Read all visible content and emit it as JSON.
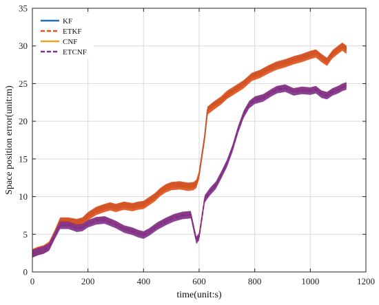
{
  "chart_data": {
    "type": "line",
    "xlabel": "time(unit:s)",
    "ylabel": "Space position error(unit:m)",
    "xlim": [
      0,
      1200
    ],
    "ylim": [
      0,
      35
    ],
    "xticks": [
      0,
      200,
      400,
      600,
      800,
      1000,
      1200
    ],
    "yticks": [
      0,
      5,
      10,
      15,
      20,
      25,
      30,
      35
    ],
    "grid": true,
    "legend_position": "top-left",
    "series": [
      {
        "name": "KF",
        "color": "#1f6fb5",
        "dash": "solid",
        "band": 0.35,
        "x": [
          0,
          20,
          40,
          60,
          80,
          100,
          130,
          160,
          180,
          200,
          230,
          260,
          280,
          300,
          330,
          360,
          380,
          400,
          420,
          440,
          460,
          480,
          500,
          530,
          560,
          580,
          590,
          600,
          620,
          630,
          650,
          680,
          700,
          730,
          760,
          790,
          820,
          850,
          880,
          910,
          940,
          970,
          1000,
          1020,
          1040,
          1060,
          1080,
          1100,
          1115,
          1130
        ],
        "y": [
          2.5,
          2.8,
          3.0,
          3.5,
          5.0,
          6.8,
          6.8,
          6.6,
          6.8,
          7.5,
          8.2,
          8.6,
          8.8,
          8.6,
          8.9,
          8.7,
          8.9,
          9.0,
          9.5,
          10.0,
          10.7,
          11.2,
          11.5,
          11.6,
          11.4,
          11.5,
          11.8,
          13.0,
          18.0,
          21.5,
          22.2,
          22.8,
          23.5,
          24.3,
          25.0,
          26.0,
          26.4,
          27.0,
          27.5,
          27.8,
          28.2,
          28.5,
          28.9,
          29.1,
          28.5,
          28.0,
          29.0,
          29.6,
          30.0,
          29.6
        ]
      },
      {
        "name": "ETKF",
        "color": "#e0521a",
        "dash": "dashed",
        "band": 0.55,
        "x": [
          0,
          20,
          40,
          60,
          80,
          100,
          130,
          160,
          180,
          200,
          230,
          260,
          280,
          300,
          330,
          360,
          380,
          400,
          420,
          440,
          460,
          480,
          500,
          530,
          560,
          580,
          590,
          600,
          620,
          630,
          650,
          680,
          700,
          730,
          760,
          790,
          820,
          850,
          880,
          910,
          940,
          970,
          1000,
          1020,
          1040,
          1060,
          1080,
          1100,
          1115,
          1130
        ],
        "y": [
          2.5,
          2.8,
          3.0,
          3.5,
          5.0,
          6.7,
          6.7,
          6.5,
          6.7,
          7.4,
          8.1,
          8.5,
          8.7,
          8.5,
          8.8,
          8.6,
          8.8,
          8.9,
          9.4,
          9.9,
          10.6,
          11.1,
          11.4,
          11.5,
          11.3,
          11.4,
          11.7,
          12.9,
          17.9,
          21.4,
          22.0,
          22.8,
          23.5,
          24.2,
          24.9,
          25.9,
          26.3,
          26.9,
          27.4,
          27.7,
          28.1,
          28.4,
          28.8,
          29.0,
          28.4,
          27.9,
          28.9,
          29.5,
          29.9,
          29.5
        ]
      },
      {
        "name": "CNF",
        "color": "#f0a21e",
        "dash": "solid",
        "band": 0.3,
        "x": [
          0,
          20,
          40,
          60,
          80,
          100,
          130,
          160,
          180,
          200,
          230,
          260,
          280,
          300,
          330,
          360,
          380,
          400,
          420,
          450,
          480,
          510,
          540,
          570,
          580,
          590,
          600,
          620,
          640,
          660,
          680,
          700,
          720,
          740,
          760,
          780,
          800,
          830,
          860,
          880,
          910,
          940,
          970,
          1000,
          1020,
          1040,
          1060,
          1080,
          1100,
          1115,
          1130
        ],
        "y": [
          2.4,
          2.7,
          2.9,
          3.3,
          4.8,
          6.3,
          6.3,
          5.9,
          6.0,
          6.5,
          6.9,
          7.0,
          6.7,
          6.4,
          5.8,
          5.5,
          5.2,
          5.0,
          5.4,
          6.2,
          6.8,
          7.3,
          7.6,
          7.7,
          6.0,
          4.3,
          4.8,
          9.8,
          10.8,
          11.6,
          13.0,
          14.5,
          16.5,
          19.0,
          21.0,
          22.3,
          22.9,
          23.2,
          23.9,
          24.3,
          24.5,
          24.0,
          24.2,
          24.1,
          24.3,
          23.7,
          23.5,
          24.0,
          24.3,
          24.6,
          24.8
        ]
      },
      {
        "name": "ETCNF",
        "color": "#7e2d8c",
        "dash": "dashed",
        "band": 0.5,
        "x": [
          0,
          20,
          40,
          60,
          80,
          100,
          130,
          160,
          180,
          200,
          230,
          260,
          280,
          300,
          330,
          360,
          380,
          400,
          420,
          450,
          480,
          510,
          540,
          570,
          580,
          590,
          600,
          620,
          640,
          660,
          680,
          700,
          720,
          740,
          760,
          780,
          800,
          830,
          860,
          880,
          910,
          940,
          970,
          1000,
          1020,
          1040,
          1060,
          1080,
          1100,
          1115,
          1130
        ],
        "y": [
          2.4,
          2.7,
          2.9,
          3.3,
          4.8,
          6.2,
          6.2,
          5.8,
          5.9,
          6.4,
          6.8,
          6.9,
          6.6,
          6.3,
          5.7,
          5.4,
          5.1,
          4.9,
          5.3,
          6.1,
          6.7,
          7.2,
          7.5,
          7.6,
          5.9,
          4.2,
          4.7,
          9.7,
          10.7,
          11.5,
          12.9,
          14.4,
          16.4,
          18.9,
          20.9,
          22.2,
          22.8,
          23.1,
          23.8,
          24.2,
          24.4,
          23.9,
          24.1,
          24.0,
          24.2,
          23.6,
          23.4,
          23.9,
          24.2,
          24.5,
          24.7
        ]
      }
    ]
  }
}
